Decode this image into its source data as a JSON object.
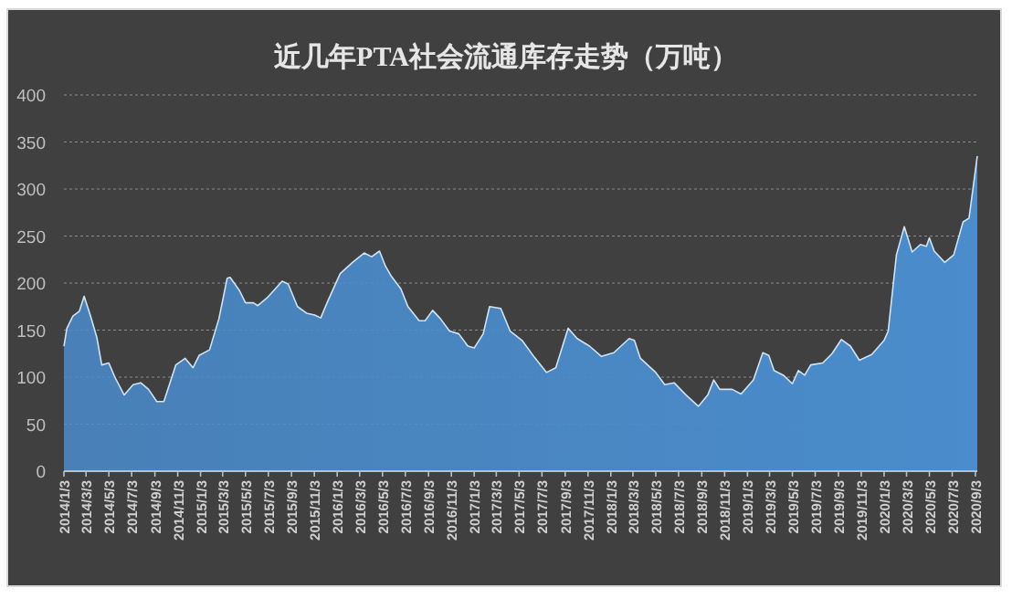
{
  "chart_data": {
    "type": "area",
    "title": "近几年PTA社会流通库存走势（万吨）",
    "x": [
      "2014-01-03",
      "2014-01-11",
      "2014-01-27",
      "2014-02-13",
      "2014-02-26",
      "2014-03-15",
      "2014-04-01",
      "2014-04-14",
      "2014-05-03",
      "2014-05-19",
      "2014-06-13",
      "2014-07-07",
      "2014-07-27",
      "2014-08-17",
      "2014-09-08",
      "2014-09-27",
      "2014-10-29",
      "2014-11-23",
      "2014-12-14",
      "2014-12-30",
      "2015-01-27",
      "2015-02-21",
      "2015-03-15",
      "2015-03-23",
      "2015-04-17",
      "2015-05-03",
      "2015-05-24",
      "2015-06-05",
      "2015-06-29",
      "2015-08-09",
      "2015-08-25",
      "2015-09-19",
      "2015-10-13",
      "2015-11-04",
      "2015-11-20",
      "2015-12-09",
      "2016-01-11",
      "2016-02-13",
      "2016-03-15",
      "2016-04-04",
      "2016-04-25",
      "2016-05-11",
      "2016-05-27",
      "2016-06-21",
      "2016-07-10",
      "2016-08-09",
      "2016-08-25",
      "2016-09-14",
      "2016-10-05",
      "2016-10-29",
      "2016-11-23",
      "2016-12-17",
      "2017-01-03",
      "2017-01-27",
      "2017-02-13",
      "2017-03-15",
      "2017-04-09",
      "2017-05-11",
      "2017-06-13",
      "2017-07-15",
      "2017-08-09",
      "2017-09-11",
      "2017-10-05",
      "2017-11-07",
      "2017-12-09",
      "2018-01-11",
      "2018-02-21",
      "2018-03-07",
      "2018-03-23",
      "2018-05-03",
      "2018-05-27",
      "2018-06-21",
      "2018-07-23",
      "2018-08-25",
      "2018-09-19",
      "2018-10-05",
      "2018-10-21",
      "2018-11-23",
      "2018-12-17",
      "2019-01-19",
      "2019-02-13",
      "2019-03-01",
      "2019-03-15",
      "2019-04-09",
      "2019-05-03",
      "2019-05-19",
      "2019-06-05",
      "2019-06-21",
      "2019-07-23",
      "2019-08-17",
      "2019-09-11",
      "2019-10-05",
      "2019-10-29",
      "2019-12-01",
      "2020-01-03",
      "2020-01-14",
      "2020-02-05",
      "2020-02-26",
      "2020-03-18",
      "2020-04-09",
      "2020-04-25",
      "2020-05-03",
      "2020-05-16",
      "2020-06-13",
      "2020-07-07",
      "2020-08-01",
      "2020-08-17",
      "2020-09-08"
    ],
    "series": [
      {
        "color": "#4a8ccc",
        "values": [
          133,
          152,
          165,
          170,
          186,
          165,
          142,
          113,
          115,
          100,
          81,
          92,
          94,
          87,
          74,
          74,
          113,
          120,
          110,
          123,
          129,
          162,
          205,
          206,
          192,
          179,
          179,
          176,
          184,
          202,
          199,
          175,
          168,
          166,
          163,
          181,
          210,
          222,
          232,
          228,
          234,
          218,
          207,
          194,
          175,
          160,
          160,
          171,
          162,
          149,
          146,
          133,
          131,
          146,
          175,
          173,
          149,
          139,
          121,
          105,
          110,
          152,
          141,
          133,
          122,
          126,
          141,
          139,
          120,
          105,
          92,
          94,
          81,
          69,
          81,
          97,
          87,
          87,
          82,
          97,
          126,
          123,
          107,
          102,
          93,
          107,
          102,
          113,
          115,
          125,
          140,
          133,
          118,
          124,
          139,
          149,
          230,
          260,
          233,
          241,
          239,
          248,
          234,
          222,
          230,
          265,
          269,
          335
        ]
      }
    ],
    "xlim": [
      "2014-01-03",
      "2020-09-08"
    ],
    "xticks": [
      {
        "value": "2014-01-03",
        "label": "2014/1/3"
      },
      {
        "value": "2014-03-03",
        "label": "2014/3/3"
      },
      {
        "value": "2014-05-03",
        "label": "2014/5/3"
      },
      {
        "value": "2014-07-03",
        "label": "2014/7/3"
      },
      {
        "value": "2014-09-03",
        "label": "2014/9/3"
      },
      {
        "value": "2014-11-03",
        "label": "2014/11/3"
      },
      {
        "value": "2015-01-03",
        "label": "2015/1/3"
      },
      {
        "value": "2015-03-03",
        "label": "2015/3/3"
      },
      {
        "value": "2015-05-03",
        "label": "2015/5/3"
      },
      {
        "value": "2015-07-03",
        "label": "2015/7/3"
      },
      {
        "value": "2015-09-03",
        "label": "2015/9/3"
      },
      {
        "value": "2015-11-03",
        "label": "2015/11/3"
      },
      {
        "value": "2016-01-03",
        "label": "2016/1/3"
      },
      {
        "value": "2016-03-03",
        "label": "2016/3/3"
      },
      {
        "value": "2016-05-03",
        "label": "2016/5/3"
      },
      {
        "value": "2016-07-03",
        "label": "2016/7/3"
      },
      {
        "value": "2016-09-03",
        "label": "2016/9/3"
      },
      {
        "value": "2016-11-03",
        "label": "2016/11/3"
      },
      {
        "value": "2017-01-03",
        "label": "2017/1/3"
      },
      {
        "value": "2017-03-03",
        "label": "2017/3/3"
      },
      {
        "value": "2017-05-03",
        "label": "2017/5/3"
      },
      {
        "value": "2017-07-03",
        "label": "2017/7/3"
      },
      {
        "value": "2017-09-03",
        "label": "2017/9/3"
      },
      {
        "value": "2017-11-03",
        "label": "2017/11/3"
      },
      {
        "value": "2018-01-03",
        "label": "2018/1/3"
      },
      {
        "value": "2018-03-03",
        "label": "2018/3/3"
      },
      {
        "value": "2018-05-03",
        "label": "2018/5/3"
      },
      {
        "value": "2018-07-03",
        "label": "2018/7/3"
      },
      {
        "value": "2018-09-03",
        "label": "2018/9/3"
      },
      {
        "value": "2018-11-03",
        "label": "2018/11/3"
      },
      {
        "value": "2019-01-03",
        "label": "2019/1/3"
      },
      {
        "value": "2019-03-03",
        "label": "2019/3/3"
      },
      {
        "value": "2019-05-03",
        "label": "2019/5/3"
      },
      {
        "value": "2019-07-03",
        "label": "2019/7/3"
      },
      {
        "value": "2019-09-03",
        "label": "2019/9/3"
      },
      {
        "value": "2019-11-03",
        "label": "2019/11/3"
      },
      {
        "value": "2020-01-03",
        "label": "2020/1/3"
      },
      {
        "value": "2020-03-03",
        "label": "2020/3/3"
      },
      {
        "value": "2020-05-03",
        "label": "2020/5/3"
      },
      {
        "value": "2020-07-03",
        "label": "2020/7/3"
      },
      {
        "value": "2020-09-03",
        "label": "2020/9/3"
      }
    ],
    "ylim": [
      0,
      400
    ],
    "yticks": [
      0,
      50,
      100,
      150,
      200,
      250,
      300,
      350,
      400
    ],
    "grid": "y"
  }
}
